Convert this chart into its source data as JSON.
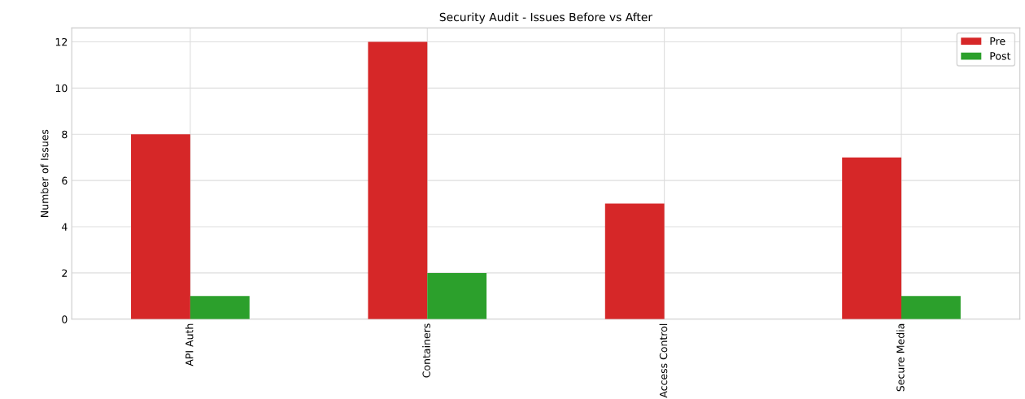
{
  "chart_data": {
    "type": "bar",
    "title": "Security Audit - Issues Before vs After",
    "ylabel": "Number of Issues",
    "categories": [
      "API Auth",
      "Containers",
      "Access Control",
      "Secure Media"
    ],
    "series": [
      {
        "name": "Pre",
        "color": "#d62728",
        "values": [
          8,
          12,
          5,
          7
        ]
      },
      {
        "name": "Post",
        "color": "#2ca02c",
        "values": [
          1,
          2,
          0,
          1
        ]
      }
    ],
    "ylim": [
      0,
      12.6
    ],
    "yticks": [
      0,
      2,
      4,
      6,
      8,
      10,
      12
    ],
    "grid": true,
    "legend": "top right"
  }
}
